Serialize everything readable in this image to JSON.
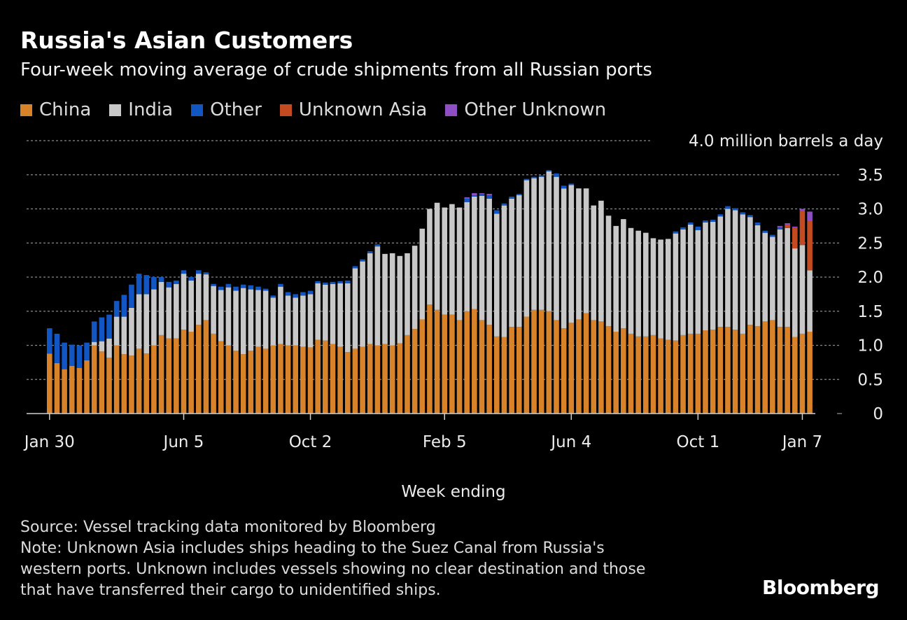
{
  "title": "Russia's Asian Customers",
  "subtitle": "Four-week moving average of crude shipments from all Russian ports",
  "legend": [
    {
      "label": "China",
      "color": "#d8832a"
    },
    {
      "label": "India",
      "color": "#c8c8c8"
    },
    {
      "label": "Other",
      "color": "#1256c4"
    },
    {
      "label": "Unknown Asia",
      "color": "#c44a22"
    },
    {
      "label": "Other Unknown",
      "color": "#8e4fc4"
    }
  ],
  "footer": {
    "source": "Source: Vessel tracking data monitored by Bloomberg",
    "note_line1": "Note: Unknown Asia includes ships heading to the Suez Canal from Russia's",
    "note_line2": "western ports. Unknown includes vessels showing no clear destination and those",
    "note_line3": "that have transferred their cargo to unidentified ships."
  },
  "logo": "Bloomberg",
  "chart_data": {
    "type": "bar",
    "stacked": true,
    "title": "Russia's Asian Customers",
    "subtitle": "Four-week moving average of crude shipments from all Russian ports",
    "xlabel": "Week ending",
    "ylabel": "million barrels a day",
    "ylim": [
      0,
      4.0
    ],
    "y_ticks": [
      0,
      0.5,
      1.0,
      1.5,
      2.0,
      2.5,
      3.0,
      3.5,
      4.0
    ],
    "y_tick_labels": [
      "0",
      "0.5",
      "1.0",
      "1.5",
      "2.0",
      "2.5",
      "3.0",
      "3.5",
      "4.0 million barrels a day"
    ],
    "x_tick_labels": [
      {
        "index": 0,
        "label": "Jan 30"
      },
      {
        "index": 18,
        "label": "Jun 5"
      },
      {
        "index": 35,
        "label": "Oct 2"
      },
      {
        "index": 53,
        "label": "Feb 5"
      },
      {
        "index": 70,
        "label": "Jun 4"
      },
      {
        "index": 87,
        "label": "Oct 1"
      },
      {
        "index": 101,
        "label": "Jan 7"
      }
    ],
    "gridlines": true,
    "legend_position": "top-left",
    "series": [
      {
        "name": "China",
        "color": "#d8832a",
        "values": [
          0.88,
          0.74,
          0.65,
          0.7,
          0.67,
          0.78,
          1.0,
          0.91,
          0.82,
          1.0,
          0.87,
          0.85,
          0.95,
          0.88,
          1.0,
          1.15,
          1.1,
          1.1,
          1.23,
          1.2,
          1.3,
          1.37,
          1.17,
          1.06,
          1.0,
          0.92,
          0.87,
          0.92,
          0.98,
          0.95,
          1.0,
          1.02,
          1.0,
          1.0,
          0.98,
          0.97,
          1.08,
          1.07,
          1.02,
          0.98,
          0.9,
          0.95,
          0.98,
          1.02,
          1.0,
          1.02,
          1.0,
          1.03,
          1.15,
          1.24,
          1.38,
          1.6,
          1.52,
          1.45,
          1.45,
          1.37,
          1.5,
          1.53,
          1.37,
          1.3,
          1.13,
          1.12,
          1.27,
          1.27,
          1.42,
          1.52,
          1.52,
          1.5,
          1.37,
          1.25,
          1.33,
          1.38,
          1.47,
          1.37,
          1.35,
          1.28,
          1.2,
          1.25,
          1.17,
          1.13,
          1.13,
          1.15,
          1.1,
          1.08,
          1.07,
          1.15,
          1.17,
          1.17,
          1.22,
          1.23,
          1.27,
          1.27,
          1.23,
          1.17,
          1.3,
          1.28,
          1.35,
          1.37,
          1.27,
          1.27,
          1.12,
          1.17,
          1.2
        ]
      },
      {
        "name": "India",
        "color": "#c8c8c8",
        "values": [
          0.0,
          0.0,
          0.0,
          0.0,
          0.0,
          0.0,
          0.05,
          0.15,
          0.28,
          0.42,
          0.55,
          0.7,
          0.8,
          0.87,
          0.82,
          0.78,
          0.75,
          0.8,
          0.82,
          0.75,
          0.75,
          0.67,
          0.7,
          0.75,
          0.85,
          0.88,
          0.97,
          0.9,
          0.83,
          0.85,
          0.7,
          0.84,
          0.73,
          0.7,
          0.75,
          0.78,
          0.83,
          0.82,
          0.88,
          0.93,
          1.01,
          1.18,
          1.25,
          1.33,
          1.45,
          1.32,
          1.35,
          1.28,
          1.2,
          1.22,
          1.33,
          1.4,
          1.57,
          1.57,
          1.62,
          1.65,
          1.6,
          1.65,
          1.82,
          1.85,
          1.8,
          1.93,
          1.88,
          1.93,
          2.0,
          1.93,
          1.95,
          2.05,
          2.1,
          2.05,
          2.02,
          1.92,
          1.83,
          1.68,
          1.77,
          1.62,
          1.55,
          1.6,
          1.55,
          1.55,
          1.52,
          1.42,
          1.45,
          1.48,
          1.57,
          1.55,
          1.6,
          1.52,
          1.58,
          1.58,
          1.62,
          1.73,
          1.75,
          1.75,
          1.58,
          1.48,
          1.3,
          1.22,
          1.43,
          1.45,
          1.3,
          1.3,
          0.9
        ]
      },
      {
        "name": "Other",
        "color": "#1256c4",
        "values": [
          0.37,
          0.43,
          0.39,
          0.31,
          0.33,
          0.26,
          0.3,
          0.35,
          0.35,
          0.23,
          0.32,
          0.34,
          0.3,
          0.28,
          0.18,
          0.07,
          0.08,
          0.05,
          0.05,
          0.05,
          0.05,
          0.03,
          0.03,
          0.05,
          0.05,
          0.06,
          0.05,
          0.06,
          0.05,
          0.03,
          0.03,
          0.04,
          0.05,
          0.05,
          0.05,
          0.05,
          0.03,
          0.03,
          0.03,
          0.03,
          0.04,
          0.03,
          0.03,
          0.03,
          0.03,
          0.0,
          0.0,
          0.0,
          0.0,
          0.0,
          0.0,
          0.0,
          0.0,
          0.0,
          0.0,
          0.0,
          0.05,
          0.02,
          0.03,
          0.05,
          0.05,
          0.03,
          0.03,
          0.02,
          0.02,
          0.02,
          0.02,
          0.02,
          0.05,
          0.04,
          0.02,
          0.0,
          0.0,
          0.0,
          0.0,
          0.0,
          0.0,
          0.0,
          0.0,
          0.0,
          0.0,
          0.0,
          0.0,
          0.0,
          0.03,
          0.03,
          0.03,
          0.05,
          0.03,
          0.03,
          0.03,
          0.04,
          0.03,
          0.03,
          0.03,
          0.04,
          0.03,
          0.03,
          0.03,
          0.0,
          0.0,
          0.0,
          0.0
        ]
      },
      {
        "name": "Unknown Asia",
        "color": "#c44a22",
        "values": [
          0,
          0,
          0,
          0,
          0,
          0,
          0,
          0,
          0,
          0,
          0,
          0,
          0,
          0,
          0,
          0,
          0,
          0,
          0,
          0,
          0,
          0,
          0,
          0,
          0,
          0,
          0,
          0,
          0,
          0,
          0,
          0,
          0,
          0,
          0,
          0,
          0,
          0,
          0,
          0,
          0,
          0,
          0,
          0,
          0,
          0,
          0,
          0,
          0,
          0,
          0,
          0,
          0,
          0,
          0,
          0,
          0,
          0,
          0,
          0,
          0,
          0,
          0,
          0,
          0,
          0,
          0,
          0,
          0,
          0,
          0,
          0,
          0,
          0,
          0,
          0,
          0,
          0,
          0,
          0,
          0,
          0,
          0,
          0,
          0,
          0,
          0,
          0,
          0,
          0,
          0,
          0,
          0,
          0,
          0,
          0,
          0,
          0,
          0,
          0.05,
          0.3,
          0.5,
          0.72
        ]
      },
      {
        "name": "Other Unknown",
        "color": "#8e4fc4",
        "values": [
          0,
          0,
          0,
          0,
          0,
          0,
          0,
          0,
          0,
          0,
          0,
          0,
          0,
          0,
          0,
          0,
          0,
          0,
          0,
          0,
          0,
          0,
          0,
          0,
          0,
          0,
          0,
          0,
          0,
          0,
          0,
          0,
          0,
          0,
          0,
          0,
          0,
          0,
          0,
          0,
          0,
          0,
          0,
          0,
          0,
          0,
          0,
          0,
          0,
          0,
          0,
          0,
          0,
          0,
          0,
          0,
          0.02,
          0.03,
          0.01,
          0.02,
          0,
          0,
          0,
          0,
          0,
          0,
          0,
          0,
          0,
          0,
          0,
          0,
          0,
          0,
          0,
          0,
          0,
          0,
          0,
          0,
          0,
          0,
          0,
          0,
          0,
          0,
          0,
          0,
          0,
          0,
          0,
          0,
          0,
          0,
          0,
          0,
          0,
          0,
          0.02,
          0.02,
          0.02,
          0.03,
          0.14
        ]
      }
    ]
  }
}
